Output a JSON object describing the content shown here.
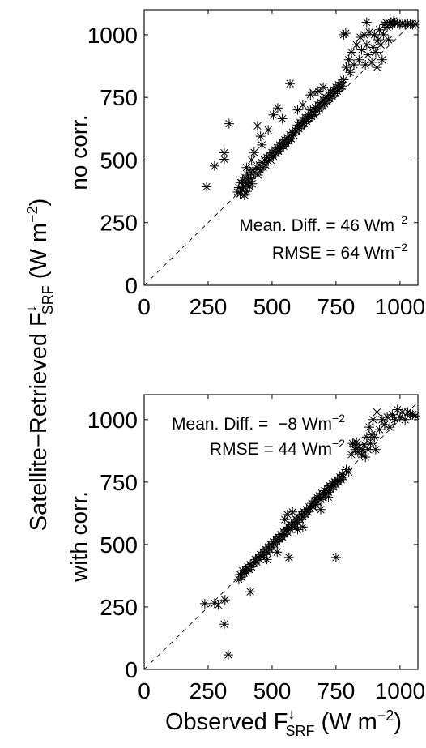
{
  "figure": {
    "ylabel": {
      "main": "Satellite−Retrieved F",
      "arrow": "↓",
      "sub": "SRF",
      "unit": " (W m",
      "unit_sup": "−2",
      "close": ")"
    },
    "xlabel": {
      "main": "Observed F",
      "arrow": "↓",
      "sub": "SRF",
      "unit": " (W m",
      "unit_sup": "−2",
      "close": ")"
    },
    "marker_color": "#000000"
  },
  "chart_data": [
    {
      "type": "scatter",
      "panel_label": "no corr.",
      "xlim": [
        0,
        1070
      ],
      "ylim": [
        0,
        1100
      ],
      "xticks": [
        0,
        250,
        500,
        750,
        1000
      ],
      "yticks": [
        0,
        250,
        500,
        750,
        1000
      ],
      "identity_line": true,
      "box": true,
      "annotations": [
        {
          "text": "Mean. Diff. = 46 Wm",
          "sup": "−2"
        },
        {
          "text": "RMSE = 64 Wm",
          "sup": "−2"
        }
      ],
      "points": [
        [
          244,
          393
        ],
        [
          275,
          476
        ],
        [
          313,
          529
        ],
        [
          313,
          503
        ],
        [
          332,
          645
        ],
        [
          443,
          636
        ],
        [
          455,
          595
        ],
        [
          522,
          708
        ],
        [
          570,
          805
        ],
        [
          485,
          620
        ],
        [
          540,
          665
        ],
        [
          505,
          680
        ],
        [
          365,
          372
        ],
        [
          370,
          390
        ],
        [
          375,
          365
        ],
        [
          378,
          410
        ],
        [
          382,
          380
        ],
        [
          385,
          420
        ],
        [
          388,
          395
        ],
        [
          392,
          360
        ],
        [
          395,
          430
        ],
        [
          398,
          400
        ],
        [
          402,
          375
        ],
        [
          405,
          440
        ],
        [
          408,
          415
        ],
        [
          412,
          395
        ],
        [
          415,
          450
        ],
        [
          418,
          425
        ],
        [
          422,
          405
        ],
        [
          425,
          460
        ],
        [
          400,
          470
        ],
        [
          420,
          500
        ],
        [
          430,
          530
        ],
        [
          460,
          560
        ],
        [
          430,
          450
        ],
        [
          440,
          470
        ],
        [
          445,
          440
        ],
        [
          450,
          480
        ],
        [
          455,
          460
        ],
        [
          460,
          490
        ],
        [
          465,
          470
        ],
        [
          470,
          500
        ],
        [
          475,
          480
        ],
        [
          480,
          510
        ],
        [
          485,
          495
        ],
        [
          490,
          520
        ],
        [
          495,
          500
        ],
        [
          500,
          530
        ],
        [
          505,
          515
        ],
        [
          510,
          540
        ],
        [
          515,
          525
        ],
        [
          520,
          550
        ],
        [
          525,
          535
        ],
        [
          530,
          560
        ],
        [
          535,
          545
        ],
        [
          540,
          570
        ],
        [
          545,
          555
        ],
        [
          550,
          580
        ],
        [
          555,
          565
        ],
        [
          560,
          590
        ],
        [
          565,
          575
        ],
        [
          570,
          600
        ],
        [
          575,
          585
        ],
        [
          580,
          610
        ],
        [
          585,
          600
        ],
        [
          590,
          620
        ],
        [
          595,
          615
        ],
        [
          600,
          640
        ],
        [
          605,
          625
        ],
        [
          610,
          650
        ],
        [
          615,
          635
        ],
        [
          620,
          660
        ],
        [
          625,
          645
        ],
        [
          630,
          670
        ],
        [
          635,
          655
        ],
        [
          640,
          680
        ],
        [
          645,
          665
        ],
        [
          650,
          700
        ],
        [
          655,
          675
        ],
        [
          660,
          690
        ],
        [
          665,
          680
        ],
        [
          670,
          710
        ],
        [
          675,
          695
        ],
        [
          680,
          720
        ],
        [
          685,
          705
        ],
        [
          690,
          730
        ],
        [
          695,
          715
        ],
        [
          700,
          740
        ],
        [
          705,
          725
        ],
        [
          710,
          750
        ],
        [
          715,
          735
        ],
        [
          720,
          760
        ],
        [
          725,
          745
        ],
        [
          730,
          770
        ],
        [
          735,
          755
        ],
        [
          740,
          780
        ],
        [
          745,
          765
        ],
        [
          750,
          790
        ],
        [
          755,
          775
        ],
        [
          760,
          800
        ],
        [
          765,
          785
        ],
        [
          770,
          810
        ],
        [
          775,
          795
        ],
        [
          780,
          820
        ],
        [
          600,
          700
        ],
        [
          620,
          720
        ],
        [
          650,
          760
        ],
        [
          660,
          770
        ],
        [
          680,
          775
        ],
        [
          700,
          790
        ],
        [
          790,
          870
        ],
        [
          800,
          900
        ],
        [
          805,
          850
        ],
        [
          810,
          930
        ],
        [
          820,
          880
        ],
        [
          830,
          960
        ],
        [
          840,
          900
        ],
        [
          845,
          990
        ],
        [
          850,
          940
        ],
        [
          860,
          1000
        ],
        [
          865,
          880
        ],
        [
          870,
          960
        ],
        [
          875,
          920
        ],
        [
          880,
          1010
        ],
        [
          890,
          890
        ],
        [
          895,
          950
        ],
        [
          900,
          1000
        ],
        [
          905,
          930
        ],
        [
          910,
          870
        ],
        [
          915,
          980
        ],
        [
          920,
          1020
        ],
        [
          925,
          960
        ],
        [
          930,
          900
        ],
        [
          935,
          1000
        ],
        [
          940,
          1040
        ],
        [
          945,
          1050
        ],
        [
          950,
          1030
        ],
        [
          955,
          980
        ],
        [
          960,
          1045
        ],
        [
          965,
          1050
        ],
        [
          970,
          1040
        ],
        [
          975,
          1055
        ],
        [
          980,
          1050
        ],
        [
          990,
          1045
        ],
        [
          1000,
          1040
        ],
        [
          1010,
          1045
        ],
        [
          1020,
          1040
        ],
        [
          1030,
          1045
        ],
        [
          1040,
          1042
        ],
        [
          1050,
          1040
        ],
        [
          1060,
          1042
        ],
        [
          788,
          1006
        ],
        [
          780,
          1000
        ],
        [
          870,
          1050
        ]
      ]
    },
    {
      "type": "scatter",
      "panel_label": "with corr.",
      "xlim": [
        0,
        1070
      ],
      "ylim": [
        0,
        1100
      ],
      "xticks": [
        0,
        250,
        500,
        750,
        1000
      ],
      "yticks": [
        0,
        250,
        500,
        750,
        1000
      ],
      "identity_line": true,
      "box": true,
      "annotations": [
        {
          "text": "Mean. Diff. =  −8 Wm",
          "sup": "−2"
        },
        {
          "text": "RMSE = 44 Wm",
          "sup": "−2"
        }
      ],
      "points": [
        [
          237,
          263
        ],
        [
          275,
          265
        ],
        [
          290,
          258
        ],
        [
          316,
          278
        ],
        [
          313,
          181
        ],
        [
          329,
          58
        ],
        [
          415,
          311
        ],
        [
          566,
          448
        ],
        [
          750,
          448
        ],
        [
          370,
          360
        ],
        [
          375,
          380
        ],
        [
          380,
          370
        ],
        [
          385,
          395
        ],
        [
          390,
          385
        ],
        [
          395,
          400
        ],
        [
          400,
          390
        ],
        [
          405,
          410
        ],
        [
          410,
          400
        ],
        [
          415,
          420
        ],
        [
          420,
          410
        ],
        [
          430,
          425
        ],
        [
          435,
          440
        ],
        [
          440,
          430
        ],
        [
          445,
          450
        ],
        [
          450,
          440
        ],
        [
          455,
          460
        ],
        [
          460,
          450
        ],
        [
          465,
          470
        ],
        [
          470,
          460
        ],
        [
          475,
          480
        ],
        [
          480,
          470
        ],
        [
          485,
          490
        ],
        [
          490,
          480
        ],
        [
          495,
          500
        ],
        [
          500,
          490
        ],
        [
          505,
          510
        ],
        [
          510,
          500
        ],
        [
          515,
          520
        ],
        [
          520,
          510
        ],
        [
          525,
          530
        ],
        [
          530,
          520
        ],
        [
          535,
          540
        ],
        [
          540,
          530
        ],
        [
          545,
          550
        ],
        [
          550,
          540
        ],
        [
          555,
          560
        ],
        [
          560,
          550
        ],
        [
          565,
          570
        ],
        [
          570,
          560
        ],
        [
          575,
          580
        ],
        [
          580,
          570
        ],
        [
          585,
          590
        ],
        [
          590,
          580
        ],
        [
          595,
          600
        ],
        [
          600,
          590
        ],
        [
          605,
          610
        ],
        [
          610,
          600
        ],
        [
          615,
          620
        ],
        [
          620,
          610
        ],
        [
          625,
          630
        ],
        [
          630,
          620
        ],
        [
          635,
          640
        ],
        [
          640,
          630
        ],
        [
          645,
          650
        ],
        [
          650,
          645
        ],
        [
          655,
          665
        ],
        [
          660,
          650
        ],
        [
          665,
          675
        ],
        [
          670,
          660
        ],
        [
          675,
          690
        ],
        [
          680,
          670
        ],
        [
          685,
          695
        ],
        [
          690,
          680
        ],
        [
          695,
          705
        ],
        [
          700,
          690
        ],
        [
          705,
          715
        ],
        [
          710,
          700
        ],
        [
          715,
          725
        ],
        [
          720,
          710
        ],
        [
          725,
          735
        ],
        [
          730,
          720
        ],
        [
          735,
          745
        ],
        [
          740,
          730
        ],
        [
          745,
          750
        ],
        [
          750,
          740
        ],
        [
          755,
          760
        ],
        [
          760,
          750
        ],
        [
          765,
          770
        ],
        [
          770,
          760
        ],
        [
          775,
          780
        ],
        [
          780,
          770
        ],
        [
          480,
          440
        ],
        [
          520,
          470
        ],
        [
          600,
          560
        ],
        [
          620,
          570
        ],
        [
          690,
          640
        ],
        [
          720,
          690
        ],
        [
          550,
          600
        ],
        [
          560,
          620
        ],
        [
          580,
          630
        ],
        [
          790,
          800
        ],
        [
          800,
          790
        ],
        [
          810,
          860
        ],
        [
          815,
          905
        ],
        [
          820,
          900
        ],
        [
          825,
          880
        ],
        [
          830,
          910
        ],
        [
          835,
          870
        ],
        [
          840,
          890
        ],
        [
          850,
          860
        ],
        [
          855,
          880
        ],
        [
          860,
          900
        ],
        [
          865,
          850
        ],
        [
          870,
          930
        ],
        [
          875,
          880
        ],
        [
          880,
          970
        ],
        [
          885,
          905
        ],
        [
          890,
          940
        ],
        [
          895,
          1000
        ],
        [
          900,
          930
        ],
        [
          905,
          880
        ],
        [
          910,
          1030
        ],
        [
          920,
          960
        ],
        [
          930,
          1000
        ],
        [
          940,
          980
        ],
        [
          950,
          1010
        ],
        [
          960,
          970
        ],
        [
          970,
          1020
        ],
        [
          980,
          1000
        ],
        [
          990,
          1040
        ],
        [
          1000,
          1010
        ],
        [
          1010,
          1030
        ],
        [
          1020,
          1000
        ],
        [
          1030,
          1030
        ],
        [
          1040,
          1020
        ],
        [
          1050,
          1020
        ],
        [
          1060,
          1015
        ]
      ]
    }
  ]
}
